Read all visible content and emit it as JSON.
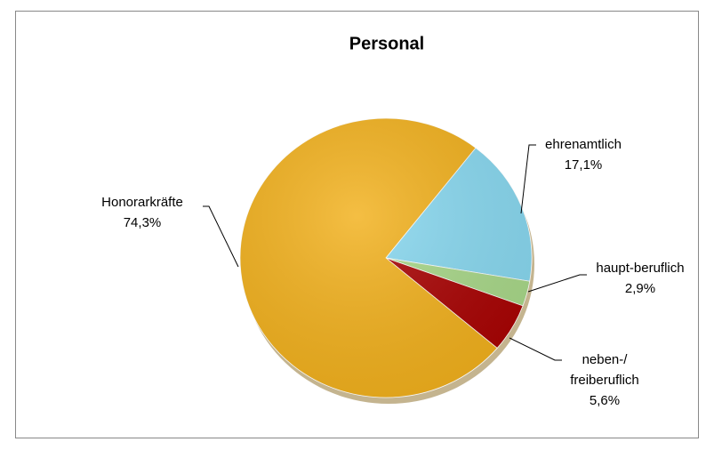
{
  "chart_data": {
    "type": "pie",
    "title": "Personal",
    "categories": [
      "ehrenamtlich",
      "haupt-beruflich",
      "neben-/ freiberuflich",
      "Honorarkräfte"
    ],
    "values": [
      17.1,
      2.9,
      5.6,
      74.3
    ],
    "value_labels": [
      "17,1%",
      "2,9%",
      "5,6%",
      "74,3%"
    ],
    "colors": [
      "#87d8f0",
      "#a8d888",
      "#a80000",
      "#f2b01a"
    ]
  }
}
